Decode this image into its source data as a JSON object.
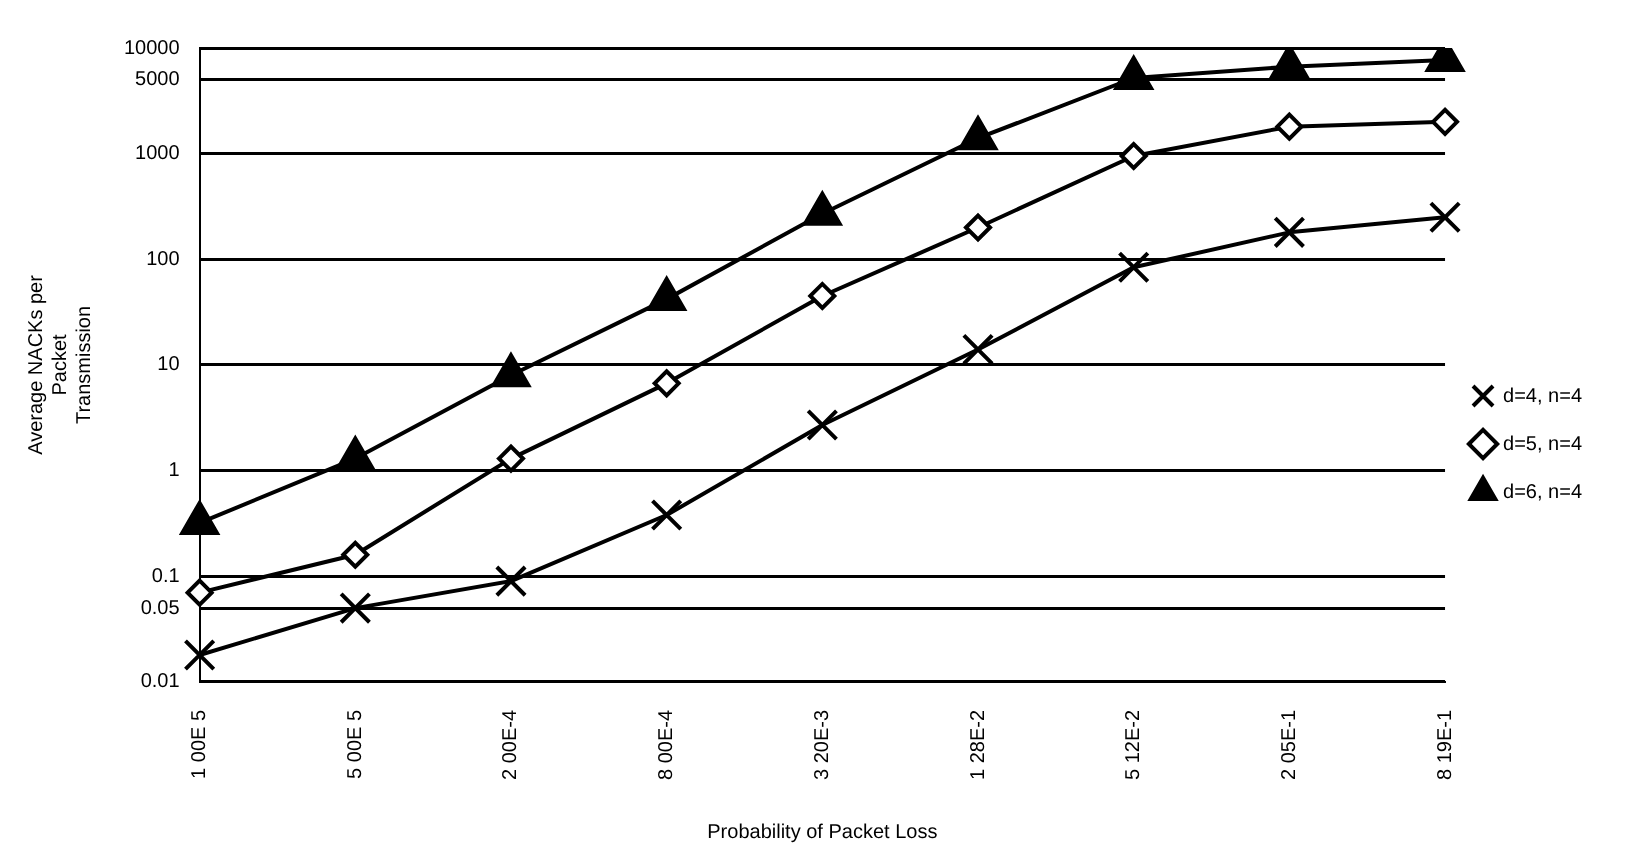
{
  "chart_data": {
    "type": "line",
    "xlabel": "Probability of Packet Loss",
    "ylabel": "Average NACKs per\nPacket\nTransmission",
    "categories": [
      "1 00E 5",
      "5 00E 5",
      "2 00E-4",
      "8 00E-4",
      "3 20E-3",
      "1 28E-2",
      "5 12E-2",
      "2 05E-1",
      "8 19E-1"
    ],
    "series": [
      {
        "name": "d=4, n=4",
        "color": "#000000",
        "marker": "cross",
        "values": [
          0.018,
          0.05,
          0.09,
          0.38,
          2.7,
          14,
          84,
          180,
          250
        ]
      },
      {
        "name": "d=5, n=4",
        "color": "#000000",
        "marker": "diamond",
        "values": [
          0.07,
          0.16,
          1.3,
          6.7,
          45,
          200,
          950,
          1800,
          2000
        ]
      },
      {
        "name": "d=6, n=4",
        "color": "#000000",
        "marker": "triangle",
        "values": [
          0.32,
          1.3,
          8,
          42,
          270,
          1400,
          5200,
          6650,
          7700
        ]
      }
    ],
    "log": "y",
    "ylim": [
      0.01,
      10000
    ],
    "yticks": [
      {
        "value": 0.01,
        "label": "0.01"
      },
      0.05,
      0.1,
      1,
      10,
      100,
      1000,
      5000,
      10000
    ],
    "grid": "y",
    "legend": "right",
    "line_style": "solid"
  }
}
